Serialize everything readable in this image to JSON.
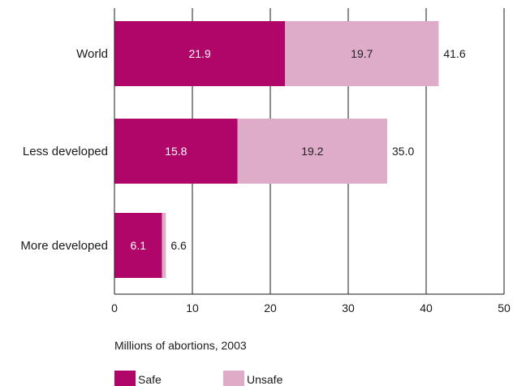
{
  "chart_data": {
    "type": "bar",
    "orientation": "horizontal",
    "stacked": true,
    "categories": [
      "World",
      "Less developed",
      "More developed"
    ],
    "series": [
      {
        "name": "Safe",
        "values": [
          21.9,
          15.8,
          6.1
        ],
        "color": "#b0066a",
        "label_color": "#ffffff"
      },
      {
        "name": "Unsafe",
        "values": [
          19.7,
          19.2,
          0.5
        ],
        "value_labels": [
          "19.7",
          "19.2",
          ""
        ],
        "color": "#deabc8",
        "label_color": "#222222"
      }
    ],
    "totals": [
      "41.6",
      "35.0",
      "6.6"
    ],
    "safe_labels": [
      "21.9",
      "15.8",
      "6.1"
    ],
    "xlabel": "Millions of abortions, 2003",
    "xlim": [
      0,
      50
    ],
    "xticks": [
      0,
      10,
      20,
      30,
      40,
      50
    ],
    "grid": true,
    "legend_position": "bottom-left"
  }
}
